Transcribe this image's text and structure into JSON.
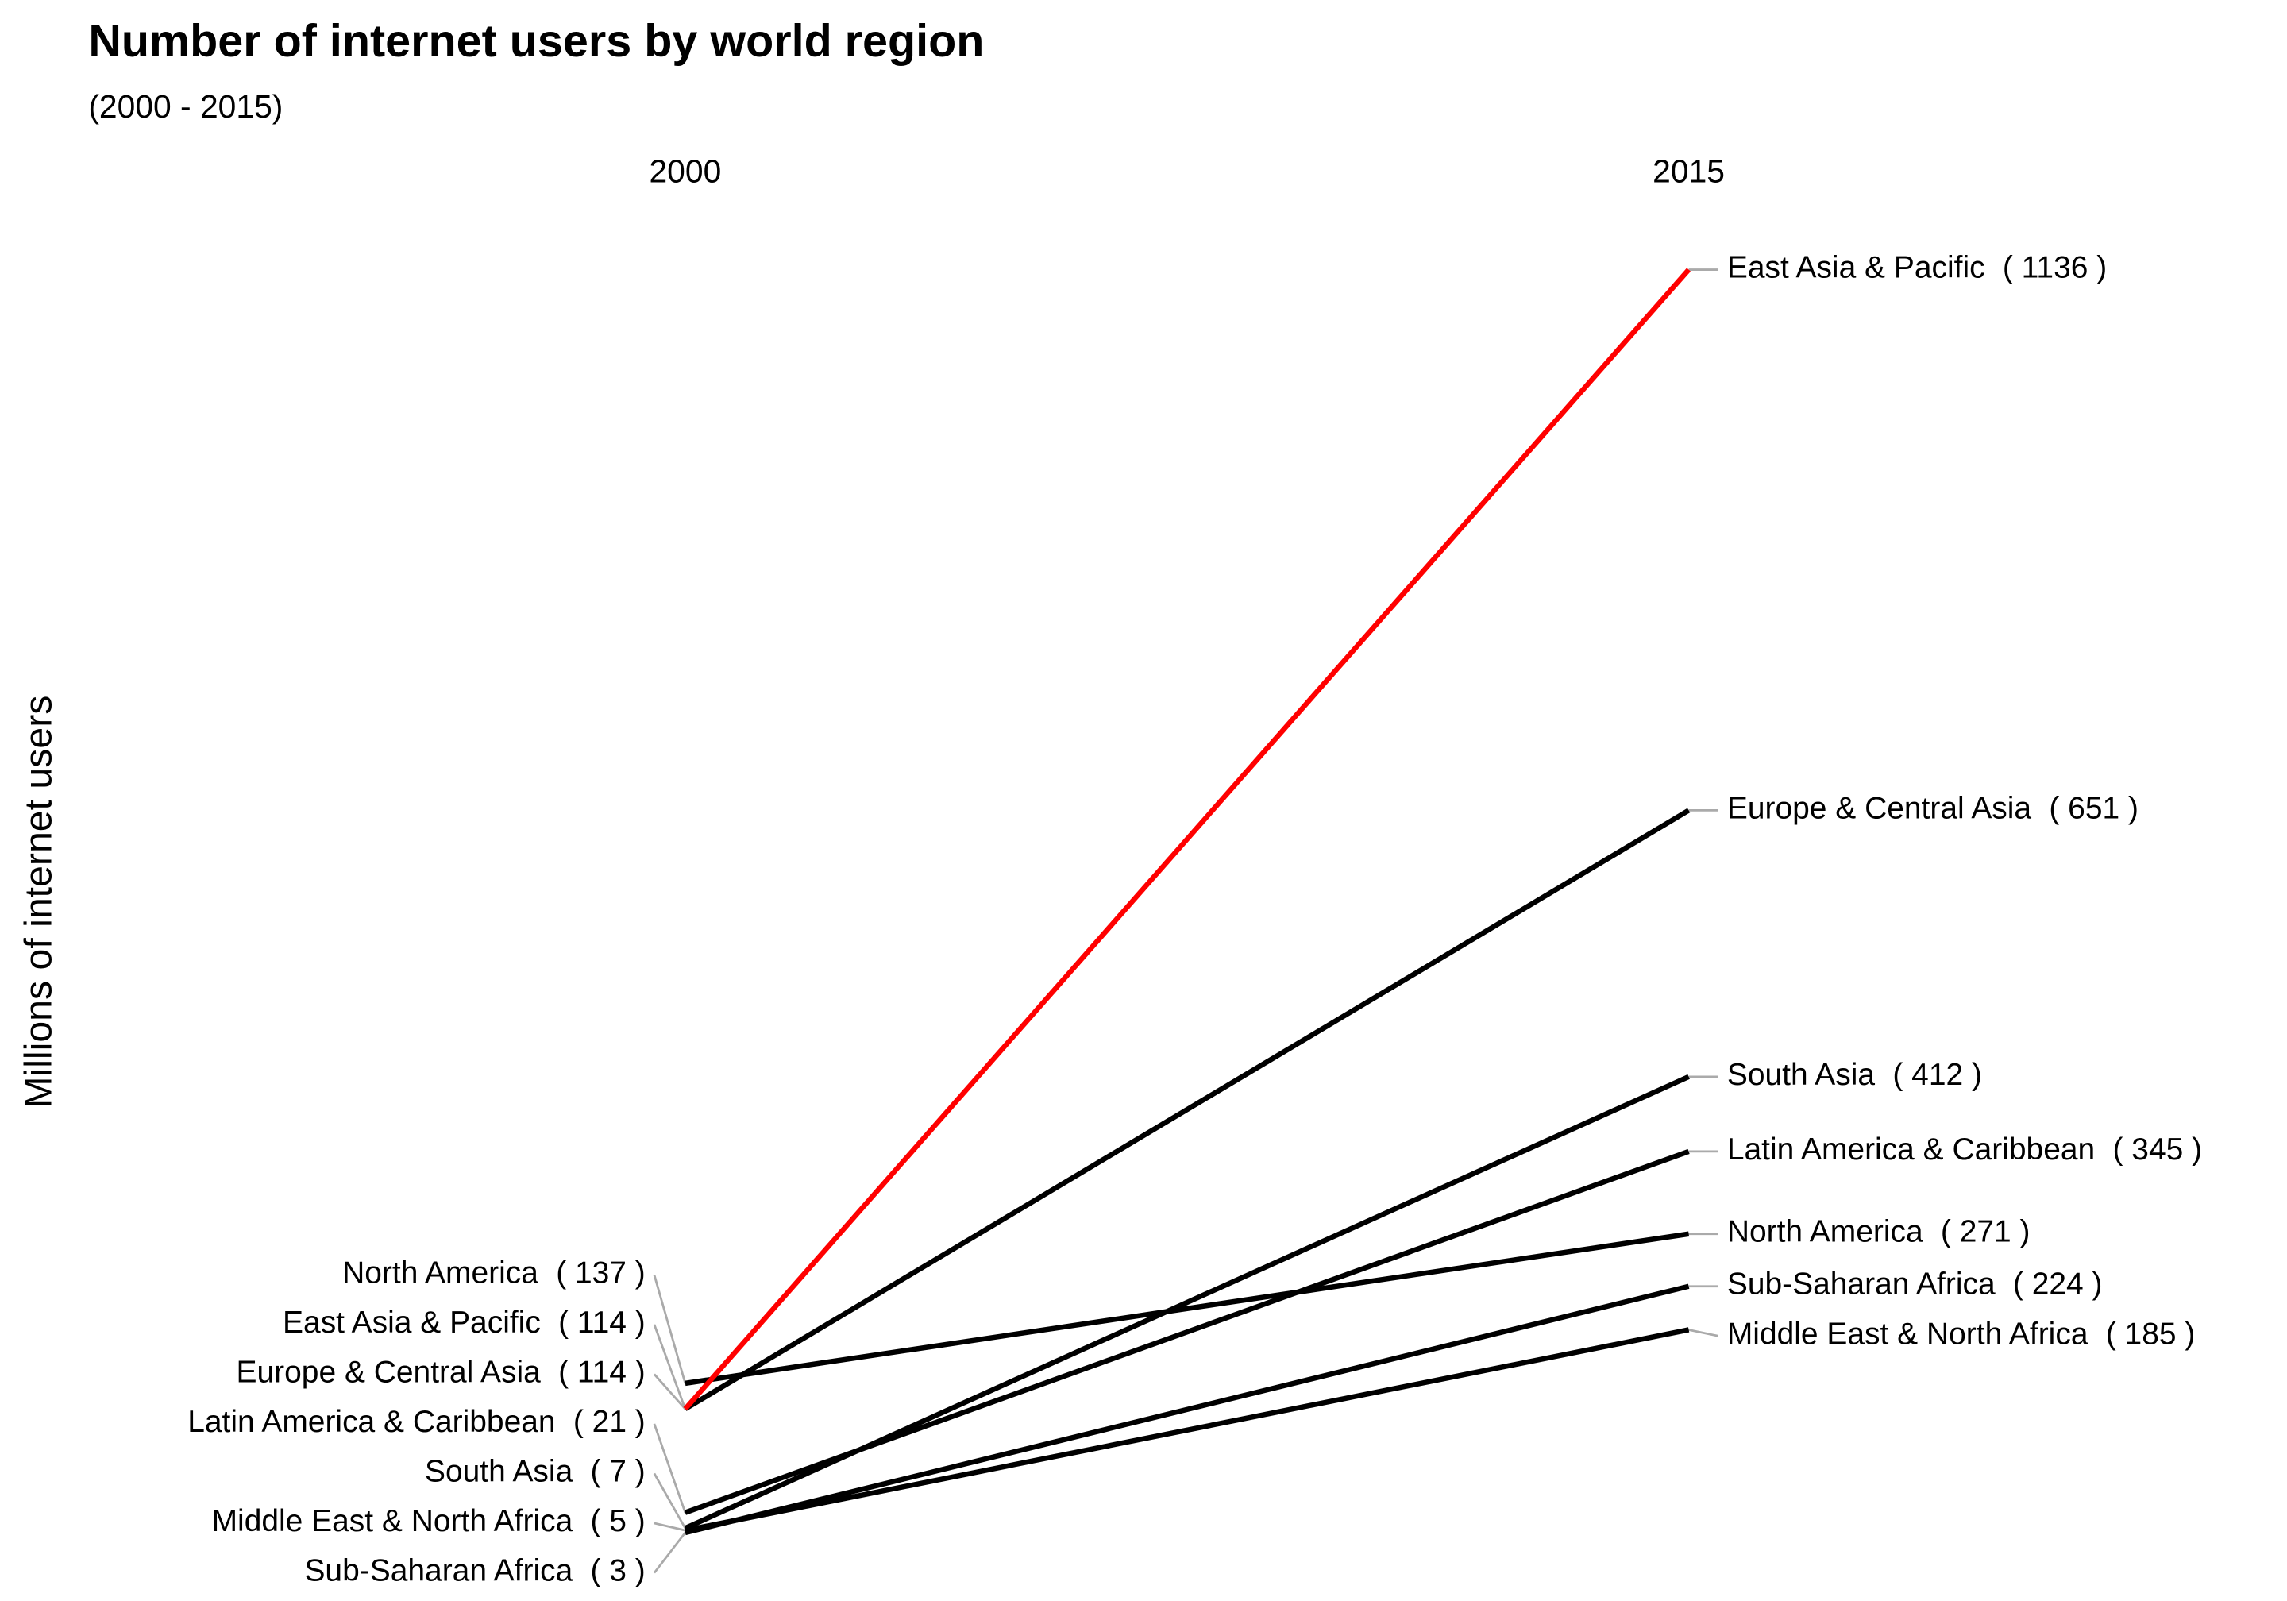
{
  "chart_data": {
    "type": "slope",
    "title": "Number of internet users by world region",
    "subtitle": "(2000 - 2015)",
    "y_label": "Millions of internet users",
    "x": [
      "2000",
      "2015"
    ],
    "ylim": [
      0,
      1150
    ],
    "series": [
      {
        "name": "East Asia & Pacific",
        "color": "#ff0000",
        "values": [
          114,
          1136
        ],
        "value_labels": [
          "( 114 )",
          "( 1136 )"
        ]
      },
      {
        "name": "Europe & Central Asia",
        "color": "#000000",
        "values": [
          114,
          651
        ],
        "value_labels": [
          "( 114 )",
          "( 651 )"
        ]
      },
      {
        "name": "South Asia",
        "color": "#000000",
        "values": [
          7,
          412
        ],
        "value_labels": [
          "( 7 )",
          "( 412 )"
        ]
      },
      {
        "name": "Latin America & Caribbean",
        "color": "#000000",
        "values": [
          21,
          345
        ],
        "value_labels": [
          "( 21 )",
          "( 345 )"
        ]
      },
      {
        "name": "North America",
        "color": "#000000",
        "values": [
          137,
          271
        ],
        "value_labels": [
          "( 137 )",
          "( 271 )"
        ]
      },
      {
        "name": "Sub-Saharan Africa",
        "color": "#000000",
        "values": [
          3,
          224
        ],
        "value_labels": [
          "( 3 )",
          "( 224 )"
        ]
      },
      {
        "name": "Middle East & North Africa",
        "color": "#000000",
        "values": [
          5,
          185
        ],
        "value_labels": [
          "( 5 )",
          "( 185 )"
        ]
      }
    ]
  }
}
